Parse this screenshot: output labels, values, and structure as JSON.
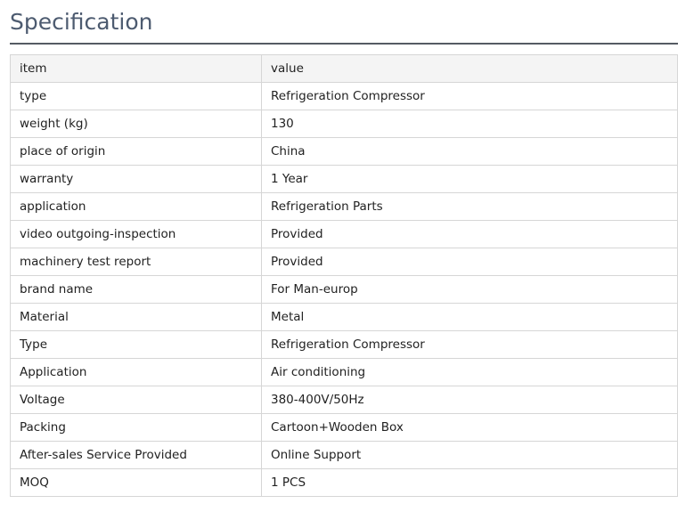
{
  "title": "Specification",
  "header": {
    "item": "item",
    "value": "value"
  },
  "rows": [
    {
      "item": "type",
      "value": "Refrigeration Compressor"
    },
    {
      "item": "weight (kg)",
      "value": "130"
    },
    {
      "item": "place of origin",
      "value": "China"
    },
    {
      "item": "warranty",
      "value": "1 Year"
    },
    {
      "item": "application",
      "value": "Refrigeration Parts"
    },
    {
      "item": "video outgoing-inspection",
      "value": "Provided"
    },
    {
      "item": "machinery test report",
      "value": "Provided"
    },
    {
      "item": "brand name",
      "value": "For Man-europ"
    },
    {
      "item": "Material",
      "value": "Metal"
    },
    {
      "item": "Type",
      "value": "Refrigeration Compressor"
    },
    {
      "item": "Application",
      "value": "Air conditioning"
    },
    {
      "item": "Voltage",
      "value": "380-400V/50Hz"
    },
    {
      "item": "Packing",
      "value": "Cartoon+Wooden Box"
    },
    {
      "item": "After-sales Service Provided",
      "value": "Online Support"
    },
    {
      "item": "MOQ",
      "value": "1 PCS"
    }
  ]
}
